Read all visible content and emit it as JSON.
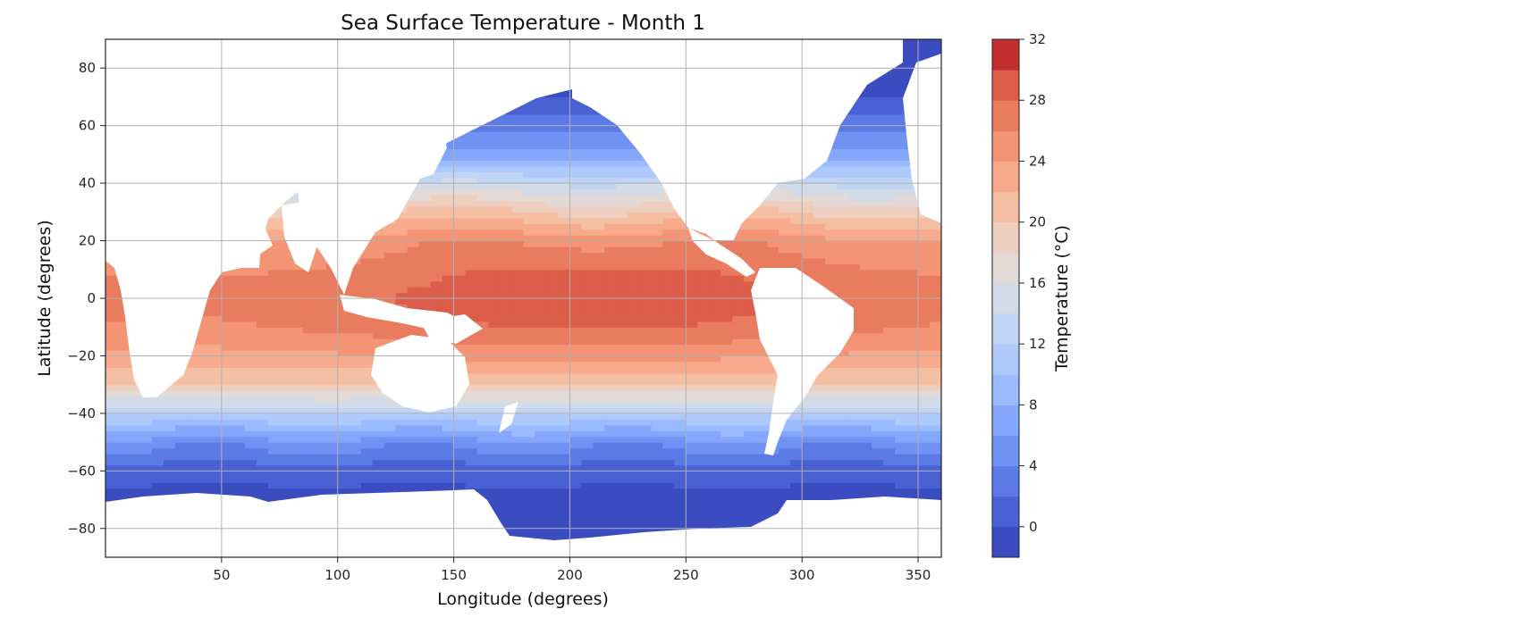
{
  "chart_data": {
    "type": "heatmap",
    "subtype": "filled-contour-map",
    "title": "Sea Surface Temperature - Month 1",
    "xlabel": "Longitude (degrees)",
    "ylabel": "Latitude (degrees)",
    "xlim": [
      0,
      360
    ],
    "ylim": [
      -90,
      90
    ],
    "xticks": [
      50,
      100,
      150,
      200,
      250,
      300,
      350
    ],
    "xtick_labels": [
      "50",
      "100",
      "150",
      "200",
      "250",
      "300",
      "350"
    ],
    "yticks": [
      80,
      60,
      40,
      20,
      0,
      -20,
      -40,
      -60,
      -80
    ],
    "ytick_labels": [
      "80",
      "60",
      "40",
      "20",
      "0",
      "−20",
      "−40",
      "−60",
      "−80"
    ],
    "grid": true,
    "colormap": "coolwarm",
    "colorbar": {
      "label": "Temperature (°C)",
      "range": [
        -2,
        32
      ],
      "ticks": [
        0,
        4,
        8,
        12,
        16,
        20,
        24,
        28,
        32
      ],
      "tick_labels": [
        "0",
        "4",
        "8",
        "12",
        "16",
        "20",
        "24",
        "28",
        "32"
      ],
      "levels": [
        -2,
        0,
        2,
        4,
        6,
        8,
        10,
        12,
        14,
        16,
        18,
        20,
        22,
        24,
        26,
        28,
        30,
        32
      ],
      "colors": [
        "#3b4cc0",
        "#4961d2",
        "#5b7ae5",
        "#6f92f3",
        "#84a7fc",
        "#9abbff",
        "#aec9fc",
        "#c0d4f5",
        "#d2dbe8",
        "#e1dad6",
        "#eecfbf",
        "#f5bfa4",
        "#f7aa8c",
        "#f39475",
        "#e97b5e",
        "#dc5d4a",
        "#c32e31"
      ]
    },
    "zonal_mean_temperature": {
      "lat": [
        -90,
        -80,
        -70,
        -60,
        -50,
        -40,
        -30,
        -20,
        -10,
        0,
        10,
        20,
        30,
        40,
        50,
        60,
        70,
        80,
        90
      ],
      "temp_c": [
        -2,
        -1.8,
        -1,
        1,
        5,
        12,
        20,
        24,
        27,
        28,
        27,
        25,
        20,
        14,
        7,
        3,
        0,
        -1.5,
        -2
      ]
    }
  }
}
